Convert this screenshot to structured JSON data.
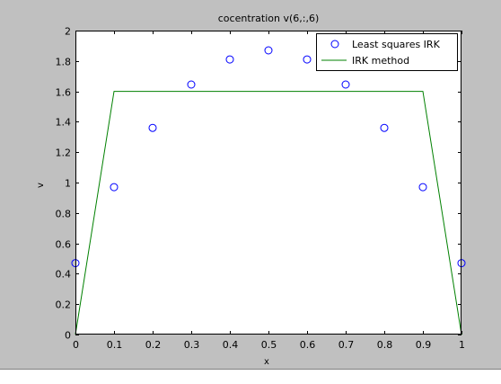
{
  "figure": {
    "background": "#c0c0c0",
    "axes_background": "#ffffff"
  },
  "chart_data": {
    "type": "line",
    "title": "cocentration v(6,:,6)",
    "xlabel": "x",
    "ylabel": "v",
    "xlim": [
      0,
      1
    ],
    "ylim": [
      0,
      2
    ],
    "xticks": [
      "0",
      "0.1",
      "0.2",
      "0.3",
      "0.4",
      "0.5",
      "0.6",
      "0.7",
      "0.8",
      "0.9",
      "1"
    ],
    "yticks": [
      "0",
      "0.2",
      "0.4",
      "0.6",
      "0.8",
      "1",
      "1.2",
      "1.4",
      "1.6",
      "1.8",
      "2"
    ],
    "grid": false,
    "legend_position": "top-right",
    "series": [
      {
        "name": "Least squares IRK",
        "kind": "scatter",
        "marker": "circle",
        "color": "#0000ff",
        "x": [
          0,
          0.1,
          0.2,
          0.3,
          0.4,
          0.5,
          0.6,
          0.7,
          0.8,
          0.9,
          1.0
        ],
        "y": [
          0.47,
          0.97,
          1.36,
          1.645,
          1.81,
          1.87,
          1.81,
          1.645,
          1.36,
          0.97,
          0.47
        ]
      },
      {
        "name": "IRK method",
        "kind": "line",
        "color": "#008000",
        "x": [
          0,
          0.1,
          0.2,
          0.3,
          0.4,
          0.5,
          0.6,
          0.7,
          0.8,
          0.9,
          1.0
        ],
        "y": [
          0,
          1.6,
          1.6,
          1.6,
          1.6,
          1.6,
          1.6,
          1.6,
          1.6,
          1.6,
          0
        ]
      }
    ]
  }
}
